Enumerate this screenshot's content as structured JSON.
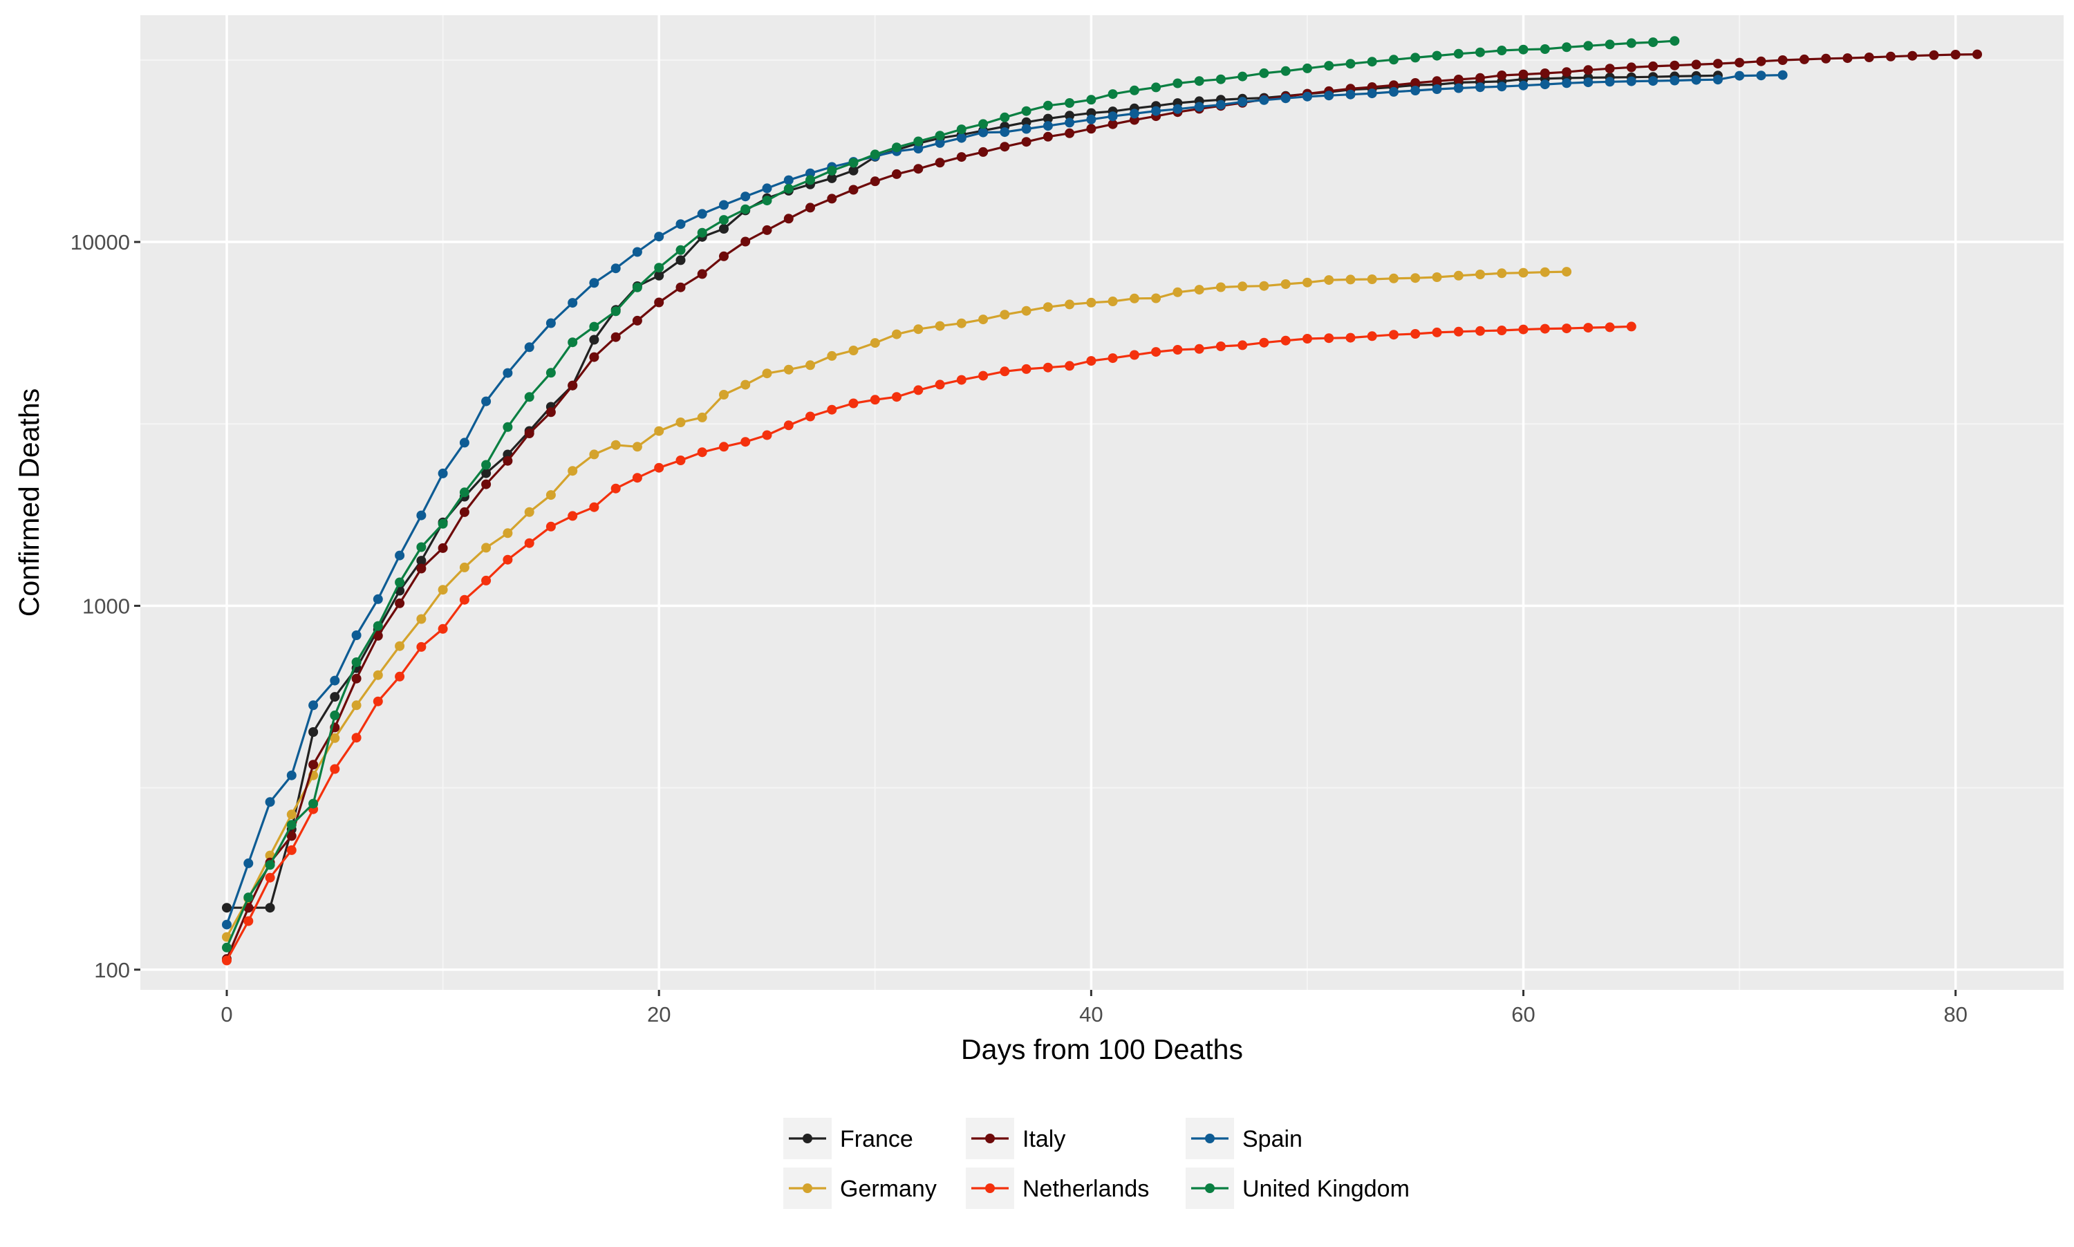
{
  "chart_data": {
    "type": "line",
    "title": "",
    "xlabel": "Days from 100 Deaths",
    "ylabel": "Confirmed Deaths",
    "y_scale": "log10",
    "xlim": [
      -4,
      85
    ],
    "ylim": [
      88,
      42000
    ],
    "x_ticks": [
      0,
      20,
      40,
      60,
      80
    ],
    "y_ticks": [
      100,
      1000,
      10000
    ],
    "y_tick_labels": [
      "100",
      "1000",
      "10000"
    ],
    "grid": true,
    "legend_position": "bottom",
    "markers": true,
    "series": [
      {
        "name": "France",
        "color": "#222222",
        "values": [
          148,
          148,
          148,
          243,
          450,
          562,
          674,
          860,
          1100,
          1331,
          1696,
          1995,
          2314,
          2606,
          3024,
          3523,
          4032,
          5387,
          6507,
          7560,
          8078,
          8911,
          10328,
          10869,
          12210,
          13197,
          13832,
          14393,
          14967,
          15712,
          17148,
          17901,
          18661,
          19294,
          19718,
          20240,
          20765,
          21340,
          21825,
          22245,
          22614,
          22856,
          23293,
          23660,
          24087,
          24376,
          24594,
          24760,
          24895,
          25201,
          25531,
          25809,
          26230,
          26380,
          26643,
          26991,
          27074,
          27425,
          27529,
          27625,
          28022,
          28111,
          28215,
          28289,
          28332,
          28367,
          28432,
          28530,
          28596,
          28662
        ]
      },
      {
        "name": "Germany",
        "color": "#D4A32C",
        "values": [
          123,
          157,
          206,
          267,
          342,
          433,
          533,
          645,
          775,
          920,
          1107,
          1275,
          1444,
          1584,
          1810,
          2016,
          2349,
          2607,
          2767,
          2736,
          3022,
          3194,
          3294,
          3804,
          4052,
          4352,
          4459,
          4586,
          4862,
          5033,
          5279,
          5575,
          5760,
          5877,
          5976,
          6126,
          6314,
          6467,
          6623,
          6736,
          6812,
          6866,
          6993,
          7003,
          7275,
          7392,
          7510,
          7549,
          7569,
          7661,
          7738,
          7861,
          7884,
          7897,
          7938,
          7962,
          8003,
          8081,
          8144,
          8203,
          8228,
          8261,
          8283
        ]
      },
      {
        "name": "Italy",
        "color": "#6E0A0A",
        "values": [
          107,
          148,
          197,
          233,
          366,
          463,
          631,
          827,
          1016,
          1266,
          1441,
          1809,
          2158,
          2503,
          2978,
          3405,
          4032,
          4825,
          5476,
          6077,
          6820,
          7503,
          8165,
          9134,
          10023,
          10779,
          11591,
          12428,
          13155,
          13915,
          14681,
          15362,
          15887,
          16523,
          17127,
          17669,
          18279,
          18849,
          19468,
          19899,
          20465,
          21067,
          21645,
          22170,
          22745,
          23227,
          23660,
          24114,
          24648,
          25085,
          25549,
          25969,
          26384,
          26644,
          26977,
          27359,
          27682,
          27967,
          28236,
          28710,
          28884,
          29079,
          29315,
          29684,
          29958,
          30201,
          30395,
          30560,
          30739,
          30911,
          31106,
          31368,
          31610,
          31763,
          31908,
          32007,
          32169,
          32330,
          32486,
          32616,
          32735,
          32785
        ]
      },
      {
        "name": "Netherlands",
        "color": "#F4310D",
        "values": [
          106,
          136,
          179,
          213,
          276,
          356,
          434,
          546,
          639,
          771,
          864,
          1039,
          1173,
          1339,
          1487,
          1651,
          1766,
          1867,
          2101,
          2248,
          2396,
          2511,
          2643,
          2737,
          2823,
          2945,
          3134,
          3315,
          3459,
          3601,
          3684,
          3751,
          3916,
          4054,
          4177,
          4289,
          4409,
          4475,
          4518,
          4566,
          4711,
          4795,
          4893,
          4987,
          5056,
          5082,
          5168,
          5204,
          5288,
          5359,
          5422,
          5440,
          5456,
          5510,
          5562,
          5590,
          5643,
          5670,
          5694,
          5715,
          5748,
          5775,
          5788,
          5811,
          5830,
          5856
        ]
      },
      {
        "name": "Spain",
        "color": "#0E5C94",
        "values": [
          133,
          196,
          289,
          342,
          533,
          623,
          830,
          1043,
          1375,
          1772,
          2311,
          2808,
          3647,
          4365,
          5138,
          5982,
          6803,
          7716,
          8464,
          9387,
          10348,
          11198,
          11947,
          12641,
          13341,
          14045,
          14792,
          15447,
          16081,
          16606,
          17209,
          17756,
          18056,
          18708,
          19315,
          20002,
          20043,
          20453,
          20852,
          21282,
          21717,
          22157,
          22524,
          22902,
          23190,
          23521,
          23822,
          24275,
          24543,
          24824,
          25100,
          25264,
          25428,
          25613,
          25857,
          26070,
          26299,
          26478,
          26621,
          26744,
          26920,
          27104,
          27321,
          27459,
          27563,
          27650,
          27709,
          27778,
          27888,
          27940,
          28628,
          28678,
          28752
        ]
      },
      {
        "name": "United Kingdom",
        "color": "#0A7F42",
        "values": [
          115,
          158,
          194,
          250,
          286,
          500,
          700,
          880,
          1160,
          1450,
          1680,
          2050,
          2440,
          3100,
          3750,
          4370,
          5300,
          5850,
          6450,
          7500,
          8500,
          9500,
          10600,
          11500,
          12300,
          13000,
          14000,
          14800,
          15700,
          16500,
          17400,
          18200,
          18900,
          19600,
          20400,
          21100,
          22000,
          22900,
          23700,
          24100,
          24600,
          25500,
          26100,
          26600,
          27300,
          27700,
          28000,
          28500,
          29100,
          29500,
          30000,
          30500,
          30900,
          31300,
          31700,
          32100,
          32500,
          32900,
          33200,
          33600,
          33800,
          33900,
          34300,
          34600,
          34900,
          35200,
          35400,
          35700
        ]
      }
    ]
  }
}
